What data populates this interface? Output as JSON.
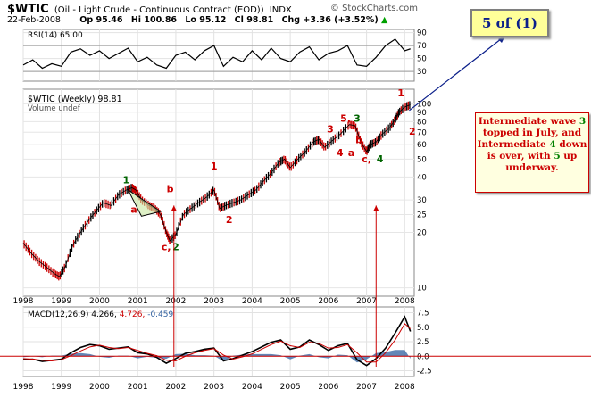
{
  "header": {
    "symbol": "$WTIC",
    "description": "(Oil - Light Crude - Continuous Contract (EOD))",
    "exchange": "INDX",
    "credit": "© StockCharts.com",
    "date": "22-Feb-2008",
    "open_label": "Op",
    "open": "95.46",
    "high_label": "Hi",
    "high": "100.86",
    "low_label": "Lo",
    "low": "95.12",
    "close_label": "Cl",
    "close": "98.81",
    "change_label": "Chg",
    "change": "+3.36 (+3.52%)",
    "change_arrow": "up-arrow-icon"
  },
  "wave_callout": {
    "prefix": "5 of ",
    "value": "(1)"
  },
  "note": {
    "line1": "Intermediate wave ",
    "line1_num": "3",
    "line2": "topped in July, and",
    "line3a": "Intermediate ",
    "line3_num": "4",
    "line3b": " down",
    "line4a": "is over, with ",
    "line4_num": "5",
    "line4b": " up",
    "line5": "underway."
  },
  "colors": {
    "price_line": "#000000",
    "down_bar": "#cc0000",
    "wave_red": "#cc0000",
    "wave_green": "#006400",
    "macd_fill": "#2f5f9f",
    "macd_signal": "#cc0000",
    "callout_fill": "#ffff99",
    "note_fill": "#ffffe0",
    "arrow": "#0b1f8a",
    "guide": "#cc0000"
  },
  "chart_data": [
    {
      "type": "line",
      "panel": "rsi",
      "legend": "RSI(14) 65.00",
      "y_ticks": [
        "90",
        "70",
        "50",
        "30"
      ],
      "ylim": [
        15,
        95
      ],
      "reference_lines": [
        30,
        70
      ],
      "x": [
        1998.0,
        1998.25,
        1998.5,
        1998.75,
        1999.0,
        1999.25,
        1999.5,
        1999.75,
        2000.0,
        2000.25,
        2000.5,
        2000.75,
        2001.0,
        2001.25,
        2001.5,
        2001.75,
        2002.0,
        2002.25,
        2002.5,
        2002.75,
        2003.0,
        2003.25,
        2003.5,
        2003.75,
        2004.0,
        2004.25,
        2004.5,
        2004.75,
        2005.0,
        2005.25,
        2005.5,
        2005.75,
        2006.0,
        2006.25,
        2006.5,
        2006.75,
        2007.0,
        2007.25,
        2007.5,
        2007.75,
        2008.0,
        2008.15
      ],
      "values": [
        40,
        48,
        35,
        42,
        38,
        60,
        65,
        55,
        62,
        50,
        58,
        66,
        45,
        52,
        40,
        35,
        55,
        60,
        48,
        62,
        70,
        38,
        52,
        45,
        62,
        48,
        66,
        50,
        45,
        60,
        68,
        48,
        58,
        62,
        70,
        40,
        38,
        52,
        70,
        80,
        62,
        65
      ]
    },
    {
      "type": "line",
      "panel": "price",
      "legend": "$WTIC (Weekly) 98.81",
      "sublegend": "Volume undef",
      "scale": "log",
      "ylim": [
        9,
        120
      ],
      "y_ticks": [
        "100",
        "90",
        "80",
        "70",
        "60",
        "50",
        "40",
        "30",
        "25",
        "20",
        "10"
      ],
      "x": [
        1998.0,
        1998.2,
        1998.4,
        1998.6,
        1998.8,
        1998.95,
        1999.1,
        1999.3,
        1999.5,
        1999.7,
        1999.9,
        2000.1,
        2000.3,
        2000.5,
        2000.7,
        2000.85,
        2000.95,
        2001.1,
        2001.3,
        2001.45,
        2001.6,
        2001.75,
        2001.85,
        2002.0,
        2002.2,
        2002.4,
        2002.6,
        2002.8,
        2003.0,
        2003.15,
        2003.3,
        2003.5,
        2003.7,
        2003.9,
        2004.1,
        2004.3,
        2004.5,
        2004.7,
        2004.85,
        2005.0,
        2005.2,
        2005.4,
        2005.6,
        2005.75,
        2005.9,
        2006.1,
        2006.3,
        2006.55,
        2006.7,
        2006.85,
        2007.0,
        2007.1,
        2007.25,
        2007.4,
        2007.6,
        2007.75,
        2007.85,
        2008.0,
        2008.15
      ],
      "values": [
        17.5,
        15.5,
        14,
        13,
        12,
        11.5,
        13,
        17,
        20,
        23,
        26,
        29,
        28,
        32,
        34,
        35,
        34,
        30,
        28,
        27,
        25,
        20,
        18,
        19.5,
        25,
        27,
        29,
        31,
        34,
        27,
        28,
        29,
        30,
        32,
        34,
        38,
        42,
        48,
        50,
        45,
        50,
        55,
        62,
        64,
        58,
        63,
        68,
        77,
        76,
        62,
        55,
        60,
        62,
        68,
        74,
        82,
        90,
        96,
        98.81
      ]
    },
    {
      "type": "line",
      "panel": "macd",
      "legend_label": "MACD(12,26,9)",
      "legend_macd": "4.266",
      "legend_signal": "4.726",
      "legend_histogram": "-0.459",
      "y_ticks": [
        "7.5",
        "5.0",
        "2.5",
        "0.0",
        "-2.5"
      ],
      "ylim": [
        -3.5,
        8.5
      ],
      "x": [
        1998.0,
        1998.25,
        1998.5,
        1998.75,
        1999.0,
        1999.25,
        1999.5,
        1999.75,
        2000.0,
        2000.25,
        2000.5,
        2000.75,
        2001.0,
        2001.25,
        2001.5,
        2001.75,
        2002.0,
        2002.25,
        2002.5,
        2002.75,
        2003.0,
        2003.25,
        2003.5,
        2003.75,
        2004.0,
        2004.25,
        2004.5,
        2004.75,
        2005.0,
        2005.25,
        2005.5,
        2005.75,
        2006.0,
        2006.25,
        2006.5,
        2006.75,
        2007.0,
        2007.25,
        2007.5,
        2007.75,
        2008.0,
        2008.15
      ],
      "macd": [
        -0.6,
        -0.5,
        -0.9,
        -0.7,
        -0.5,
        0.6,
        1.5,
        2.0,
        1.8,
        1.2,
        1.4,
        1.6,
        0.6,
        0.4,
        -0.2,
        -1.2,
        -0.4,
        0.5,
        0.8,
        1.2,
        1.4,
        -0.8,
        -0.4,
        0.2,
        0.8,
        1.6,
        2.4,
        2.8,
        1.2,
        1.6,
        2.8,
        2.0,
        1.0,
        1.8,
        2.2,
        -0.6,
        -1.6,
        -0.4,
        1.4,
        4.0,
        6.8,
        4.27
      ],
      "signal": [
        -0.4,
        -0.5,
        -0.7,
        -0.8,
        -0.6,
        0.1,
        0.9,
        1.6,
        1.9,
        1.5,
        1.3,
        1.5,
        1.0,
        0.5,
        0.1,
        -0.7,
        -0.8,
        0.0,
        0.6,
        1.0,
        1.3,
        0.2,
        -0.5,
        -0.1,
        0.4,
        1.2,
        2.0,
        2.6,
        1.8,
        1.5,
        2.4,
        2.2,
        1.4,
        1.5,
        2.0,
        0.6,
        -1.0,
        -1.0,
        0.6,
        2.8,
        5.6,
        4.73
      ]
    }
  ],
  "x_axis": {
    "years": [
      "1998",
      "1999",
      "2000",
      "2001",
      "2002",
      "2003",
      "2004",
      "2005",
      "2006",
      "2007",
      "2008"
    ],
    "positions": [
      1998,
      1999,
      2000,
      2001,
      2002,
      2003,
      2004,
      2005,
      2006,
      2007,
      2008
    ]
  },
  "annotations": [
    {
      "text": "1",
      "color": "green",
      "x": 2000.7,
      "y": 37
    },
    {
      "text": "a",
      "color": "red",
      "x": 2000.9,
      "y": 25.5
    },
    {
      "text": "b",
      "color": "red",
      "x": 2001.85,
      "y": 33
    },
    {
      "text": "c,",
      "color": "red",
      "x": 2001.75,
      "y": 16.0
    },
    {
      "text": "2",
      "color": "green",
      "x": 2002.0,
      "y": 16.0
    },
    {
      "text": "1",
      "color": "red",
      "x": 2003.0,
      "y": 44
    },
    {
      "text": "2",
      "color": "red",
      "x": 2003.4,
      "y": 22.5
    },
    {
      "text": "3",
      "color": "red",
      "x": 2006.05,
      "y": 70
    },
    {
      "text": "4",
      "color": "red",
      "x": 2006.3,
      "y": 52
    },
    {
      "text": "5,",
      "color": "red",
      "x": 2006.45,
      "y": 80
    },
    {
      "text": "3",
      "color": "green",
      "x": 2006.75,
      "y": 80
    },
    {
      "text": "b",
      "color": "red",
      "x": 2006.8,
      "y": 61
    },
    {
      "text": "a",
      "color": "red",
      "x": 2006.6,
      "y": 52
    },
    {
      "text": "c,",
      "color": "red",
      "x": 2007.0,
      "y": 48
    },
    {
      "text": "4",
      "color": "green",
      "x": 2007.35,
      "y": 48
    },
    {
      "text": "1",
      "color": "red",
      "x": 2007.9,
      "y": 110
    },
    {
      "text": "2",
      "color": "red",
      "x": 2008.2,
      "y": 68
    }
  ]
}
